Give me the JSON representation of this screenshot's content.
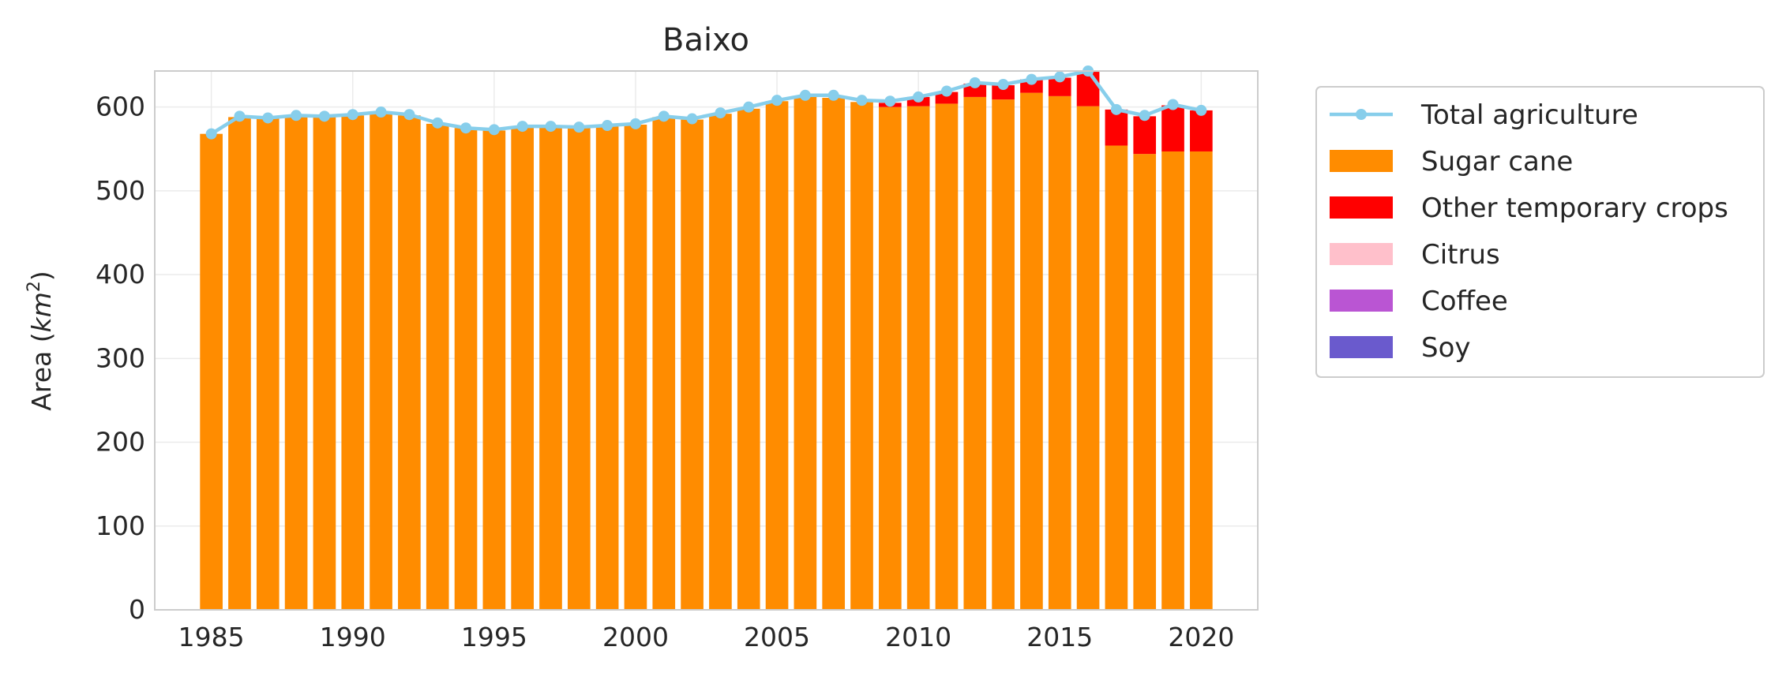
{
  "chart_data": {
    "type": "bar",
    "stacked": true,
    "title": "Baixo",
    "xlabel": "",
    "ylabel": "Area (km²)",
    "ylabel_parts": {
      "text": "Area (",
      "var": "km",
      "sup": "2",
      "close": ")"
    },
    "xlim": [
      1983,
      2022
    ],
    "ylim": [
      0,
      643
    ],
    "xticks": [
      1985,
      1990,
      1995,
      2000,
      2005,
      2010,
      2015,
      2020
    ],
    "yticks": [
      0,
      100,
      200,
      300,
      400,
      500,
      600
    ],
    "grid": true,
    "legend_position": "outside-right-top",
    "x": [
      1985,
      1986,
      1987,
      1988,
      1989,
      1990,
      1991,
      1992,
      1993,
      1994,
      1995,
      1996,
      1997,
      1998,
      1999,
      2000,
      2001,
      2002,
      2003,
      2004,
      2005,
      2006,
      2007,
      2008,
      2009,
      2010,
      2011,
      2012,
      2013,
      2014,
      2015,
      2016,
      2017,
      2018,
      2019,
      2020
    ],
    "series": [
      {
        "name": "Sugar cane",
        "color": "#ff8c00",
        "values": [
          568,
          588,
          587,
          589,
          588,
          590,
          592,
          590,
          580,
          575,
          572,
          577,
          576,
          575,
          577,
          579,
          588,
          585,
          592,
          598,
          607,
          612,
          611,
          606,
          600,
          601,
          604,
          612,
          609,
          617,
          613,
          601,
          554,
          544,
          547,
          547
        ]
      },
      {
        "name": "Other temporary crops",
        "color": "#ff0000",
        "values": [
          0,
          0,
          0,
          0,
          0,
          0,
          0,
          0,
          0,
          0,
          0,
          0,
          0,
          0,
          0,
          0,
          0,
          0,
          0,
          0,
          0,
          0,
          0,
          0,
          5,
          11,
          14,
          16,
          17,
          16,
          22,
          41,
          43,
          45,
          55,
          49
        ]
      },
      {
        "name": "Citrus",
        "color": "#ffc0cb",
        "values": [
          0,
          0,
          0,
          0,
          0,
          0,
          0,
          0,
          0,
          0,
          0,
          0,
          0,
          0,
          0,
          0,
          0,
          0,
          0,
          0,
          0,
          0,
          0,
          0,
          0,
          0,
          0,
          0,
          0,
          0,
          0,
          0,
          0,
          0,
          0,
          0
        ]
      },
      {
        "name": "Coffee",
        "color": "#ba55d3",
        "values": [
          0,
          0,
          0,
          0,
          0,
          0,
          0,
          0,
          0,
          0,
          0,
          0,
          0,
          0,
          0,
          0,
          0,
          0,
          0,
          0,
          0,
          0,
          0,
          0,
          0,
          0,
          0,
          0,
          0,
          0,
          0,
          0,
          0,
          0,
          0,
          0
        ]
      },
      {
        "name": "Soy",
        "color": "#6a5acd",
        "values": [
          0,
          0,
          0,
          0,
          0,
          0,
          0,
          0,
          0,
          0,
          0,
          0,
          0,
          0,
          0,
          0,
          0,
          0,
          0,
          0,
          0,
          0,
          0,
          0,
          0,
          0,
          0,
          0,
          0,
          0,
          0,
          0,
          0,
          0,
          0,
          0
        ]
      }
    ],
    "line": {
      "name": "Total agriculture",
      "color": "#87ceeb",
      "values": [
        568,
        589,
        587,
        590,
        589,
        591,
        594,
        591,
        581,
        575,
        573,
        577,
        577,
        576,
        578,
        580,
        589,
        586,
        593,
        600,
        608,
        614,
        614,
        608,
        607,
        612,
        619,
        629,
        627,
        633,
        636,
        643,
        597,
        590,
        603,
        596
      ]
    }
  }
}
